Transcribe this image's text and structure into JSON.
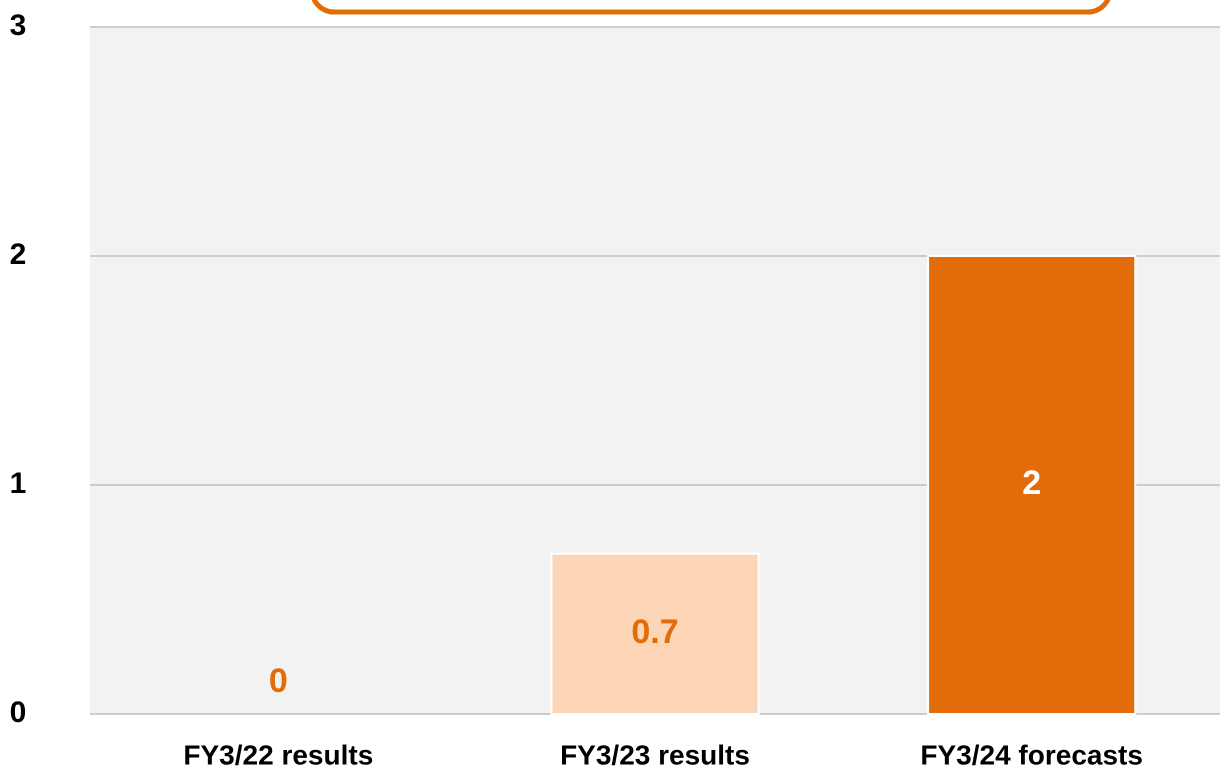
{
  "chart_data": {
    "type": "bar",
    "categories": [
      "FY3/22 results",
      "FY3/23 results",
      "FY3/24 forecasts"
    ],
    "values": [
      0,
      0.7,
      2
    ],
    "colors": [
      "#e36c0a",
      "#fbd5b5",
      "#e36c0a"
    ],
    "label_colors": [
      "#e36c0a",
      "#e36c0a",
      "#ffffff"
    ],
    "ylim": [
      0,
      3
    ],
    "yticks": [
      0,
      1,
      2,
      3
    ],
    "grid": true
  }
}
